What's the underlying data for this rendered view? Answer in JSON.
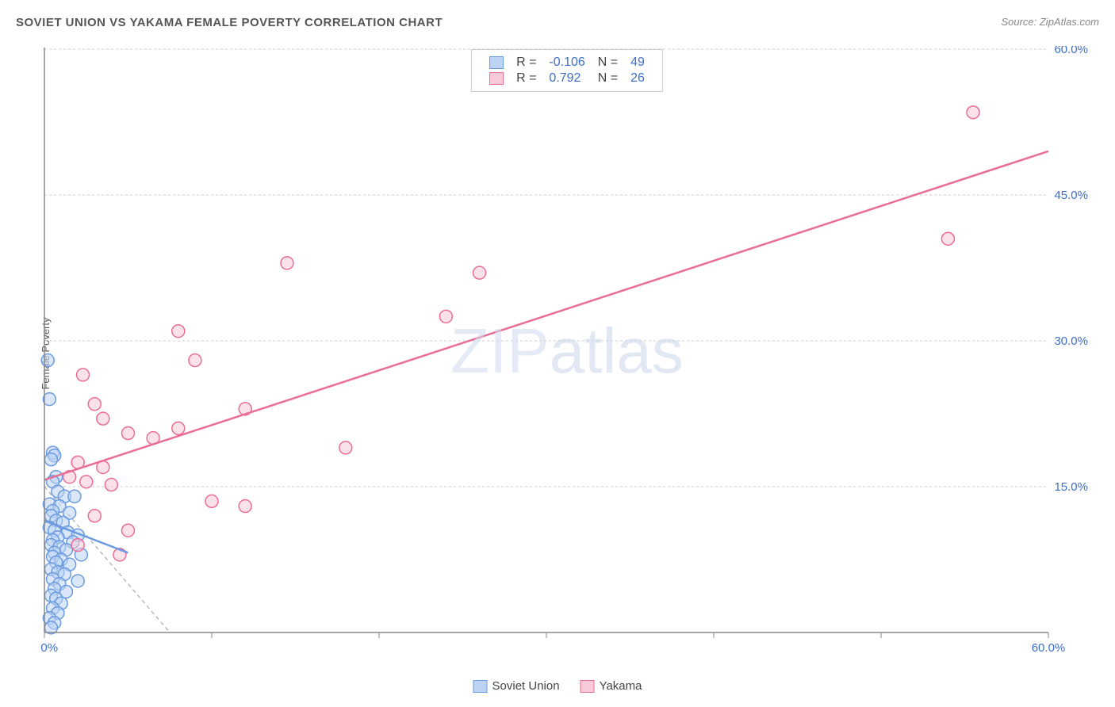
{
  "title": "SOVIET UNION VS YAKAMA FEMALE POVERTY CORRELATION CHART",
  "source": "Source: ZipAtlas.com",
  "y_axis_label": "Female Poverty",
  "watermark": {
    "zip": "ZIP",
    "atlas": "atlas"
  },
  "chart": {
    "type": "scatter",
    "background_color": "#ffffff",
    "grid_color": "#cccccc",
    "axis_color": "#888888",
    "label_color": "#3b6fc9",
    "xlim": [
      0,
      60
    ],
    "ylim": [
      0,
      60
    ],
    "x_ticks": [
      0,
      10,
      20,
      30,
      40,
      50,
      60
    ],
    "y_ticks": [
      15,
      30,
      45,
      60
    ],
    "x_tick_labels": [
      "0.0%",
      "",
      "",
      "",
      "",
      "",
      "60.0%"
    ],
    "y_tick_labels": [
      "15.0%",
      "30.0%",
      "45.0%",
      "60.0%"
    ],
    "marker_radius": 8,
    "marker_stroke_width": 1.5,
    "trend_line_width": 2.5,
    "series": [
      {
        "name": "Soviet Union",
        "fill": "#bcd3f3",
        "stroke": "#6b9ae0",
        "fill_opacity": 0.55,
        "R": "-0.106",
        "N": "49",
        "trend": {
          "x1": 0,
          "y1": 11.5,
          "x2": 5,
          "y2": 8.2
        },
        "points": [
          [
            0.2,
            28.0
          ],
          [
            0.3,
            24.0
          ],
          [
            0.5,
            18.5
          ],
          [
            0.6,
            18.2
          ],
          [
            0.4,
            17.8
          ],
          [
            0.7,
            16.0
          ],
          [
            0.5,
            15.5
          ],
          [
            0.8,
            14.5
          ],
          [
            1.2,
            14.0
          ],
          [
            1.8,
            14.0
          ],
          [
            0.3,
            13.2
          ],
          [
            0.9,
            13.0
          ],
          [
            0.5,
            12.5
          ],
          [
            1.5,
            12.3
          ],
          [
            0.4,
            12.0
          ],
          [
            0.7,
            11.5
          ],
          [
            1.1,
            11.3
          ],
          [
            0.3,
            10.8
          ],
          [
            0.6,
            10.5
          ],
          [
            1.4,
            10.3
          ],
          [
            2.0,
            10.0
          ],
          [
            0.8,
            9.8
          ],
          [
            0.5,
            9.5
          ],
          [
            1.7,
            9.3
          ],
          [
            0.4,
            9.0
          ],
          [
            0.9,
            8.8
          ],
          [
            1.3,
            8.5
          ],
          [
            0.6,
            8.2
          ],
          [
            2.2,
            8.0
          ],
          [
            0.5,
            7.8
          ],
          [
            1.0,
            7.5
          ],
          [
            0.7,
            7.2
          ],
          [
            1.5,
            7.0
          ],
          [
            0.4,
            6.5
          ],
          [
            0.8,
            6.2
          ],
          [
            1.2,
            6.0
          ],
          [
            0.5,
            5.5
          ],
          [
            2.0,
            5.3
          ],
          [
            0.9,
            5.0
          ],
          [
            0.6,
            4.5
          ],
          [
            1.3,
            4.2
          ],
          [
            0.4,
            3.8
          ],
          [
            0.7,
            3.5
          ],
          [
            1.0,
            3.0
          ],
          [
            0.5,
            2.5
          ],
          [
            0.8,
            2.0
          ],
          [
            0.3,
            1.5
          ],
          [
            0.6,
            1.0
          ],
          [
            0.4,
            0.5
          ]
        ]
      },
      {
        "name": "Yakama",
        "fill": "#f8c9d6",
        "stroke": "#ea6d95",
        "fill_opacity": 0.55,
        "R": "0.792",
        "N": "26",
        "trend": {
          "x1": 0,
          "y1": 15.7,
          "x2": 60,
          "y2": 49.5
        },
        "points": [
          [
            55.5,
            53.5
          ],
          [
            54.0,
            40.5
          ],
          [
            14.5,
            38.0
          ],
          [
            26.0,
            37.0
          ],
          [
            8.0,
            31.0
          ],
          [
            9.0,
            28.0
          ],
          [
            2.3,
            26.5
          ],
          [
            24.0,
            32.5
          ],
          [
            3.0,
            23.5
          ],
          [
            12.0,
            23.0
          ],
          [
            3.5,
            22.0
          ],
          [
            8.0,
            21.0
          ],
          [
            5.0,
            20.5
          ],
          [
            6.5,
            20.0
          ],
          [
            18.0,
            19.0
          ],
          [
            2.0,
            17.5
          ],
          [
            3.5,
            17.0
          ],
          [
            1.5,
            16.0
          ],
          [
            2.5,
            15.5
          ],
          [
            4.0,
            15.2
          ],
          [
            10.0,
            13.5
          ],
          [
            12.0,
            13.0
          ],
          [
            3.0,
            12.0
          ],
          [
            5.0,
            10.5
          ],
          [
            2.0,
            9.0
          ],
          [
            4.5,
            8.0
          ]
        ]
      }
    ],
    "reference_dashed_line": {
      "x1": 0,
      "y1": 15.0,
      "x2": 7.5,
      "y2": 0,
      "color": "#aaaaaa"
    }
  },
  "stats_legend": {
    "rows": [
      {
        "swatch_fill": "#bcd3f3",
        "swatch_stroke": "#6b9ae0",
        "r_label": "R =",
        "r_value": "-0.106",
        "n_label": "N =",
        "n_value": "49"
      },
      {
        "swatch_fill": "#f8c9d6",
        "swatch_stroke": "#ea6d95",
        "r_label": "R =",
        "r_value": "0.792",
        "n_label": "N =",
        "n_value": "26"
      }
    ]
  },
  "bottom_legend": [
    {
      "swatch_fill": "#bcd3f3",
      "swatch_stroke": "#6b9ae0",
      "label": "Soviet Union"
    },
    {
      "swatch_fill": "#f8c9d6",
      "swatch_stroke": "#ea6d95",
      "label": "Yakama"
    }
  ]
}
